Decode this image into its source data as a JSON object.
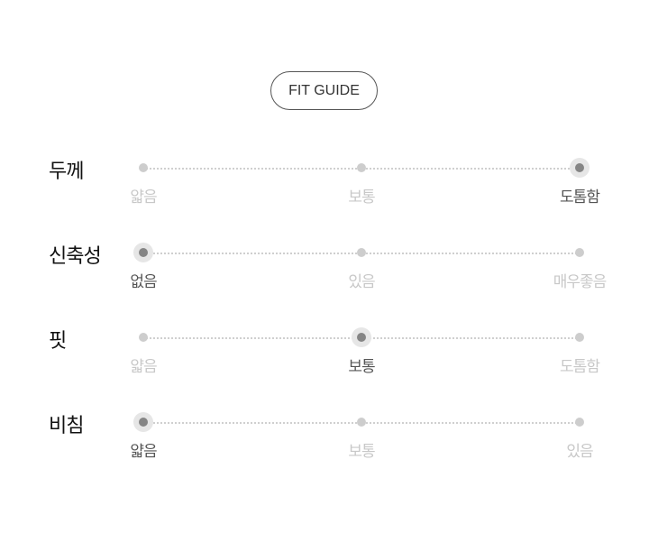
{
  "guide_button": "FIT GUIDE",
  "colors": {
    "selected_dot": "#858585",
    "unselected_dot": "#cdcdcd",
    "selected_text": "#555555",
    "unselected_text": "#c8c8c8"
  },
  "rows": [
    {
      "title": "두께",
      "options": [
        "얇음",
        "보통",
        "도톰함"
      ],
      "selected": 2
    },
    {
      "title": "신축성",
      "options": [
        "없음",
        "있음",
        "매우좋음"
      ],
      "selected": 0
    },
    {
      "title": "핏",
      "options": [
        "얇음",
        "보통",
        "도톰함"
      ],
      "selected": 1
    },
    {
      "title": "비침",
      "options": [
        "얇음",
        "보통",
        "있음"
      ],
      "selected": 0
    }
  ]
}
